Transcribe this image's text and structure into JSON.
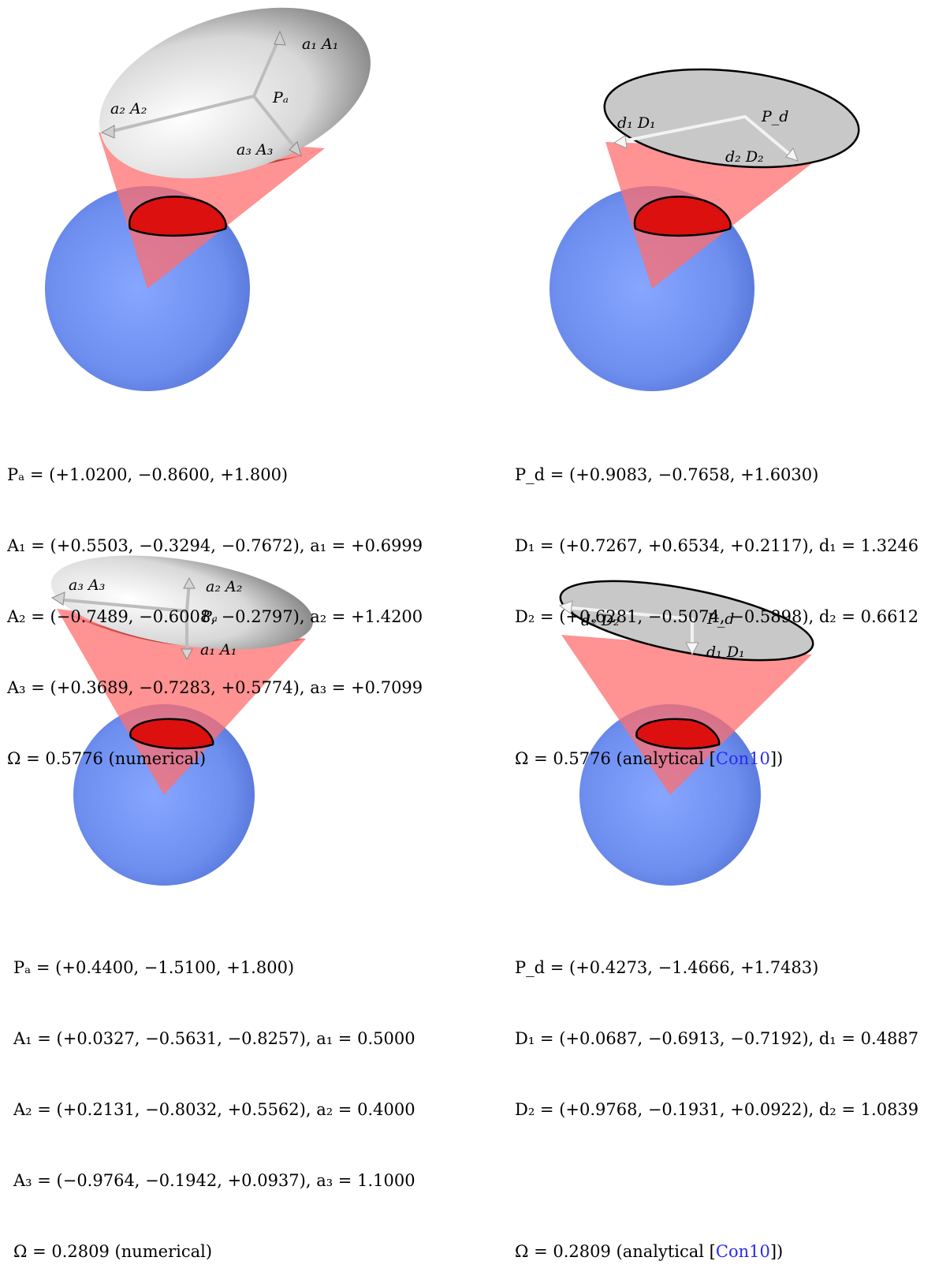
{
  "panels": [
    {
      "labels": {
        "axis1": "a₁ A₁",
        "axis2": "a₂ A₂",
        "axis3": "a₃ A₃",
        "center": "Pₐ"
      },
      "equations": [
        "Pₐ = (+1.0200, −0.8600, +1.800)",
        "A₁ = (+0.5503, −0.3294, −0.7672), a₁ = +0.6999",
        "A₂ = (−0.7489, −0.6008, −0.2797), a₂ = +1.4200",
        "A₃ = (+0.3689, −0.7283, +0.5774), a₃ = +0.7099"
      ],
      "omega": "Ω = 0.5776 (numerical)"
    },
    {
      "labels": {
        "axis1": "d₁ D₁",
        "axis2": "d₂ D₂",
        "center": "P_d"
      },
      "equations": [
        "P_d = (+0.9083, −0.7658, +1.6030)",
        "D₁ = (+0.7267, +0.6534, +0.2117), d₁ = 1.3246",
        "D₂ = (+0.6281, −0.5074, −0.5898), d₂ = 0.6612",
        ""
      ],
      "omega_prefix": "Ω = 0.5776 (analytical [",
      "omega_ref": "Con10",
      "omega_suffix": "])"
    },
    {
      "labels": {
        "axis1": "a₁ A₁",
        "axis2": "a₂ A₂",
        "axis3": "a₃ A₃",
        "center": "Pₐ"
      },
      "equations": [
        "Pₐ = (+0.4400, −1.5100, +1.800)",
        "A₁ = (+0.0327, −0.5631, −0.8257), a₁ = 0.5000",
        "A₂ = (+0.2131, −0.8032, +0.5562), a₂ = 0.4000",
        "A₃ = (−0.9764, −0.1942, +0.0937), a₃ = 1.1000"
      ],
      "omega": "Ω = 0.2809 (numerical)"
    },
    {
      "labels": {
        "axis1": "d₁ D₁",
        "axis2": "d₂ D₂",
        "center": "P_d"
      },
      "equations": [
        "P_d = (+0.4273, −1.4666, +1.7483)",
        "D₁ = (+0.0687, −0.6913, −0.7192), d₁ = 0.4887",
        "D₂ = (+0.9768, −0.1931, +0.0922), d₂ = 1.0839",
        ""
      ],
      "omega_prefix": "Ω = 0.2809 (analytical [",
      "omega_ref": "Con10",
      "omega_suffix": "])"
    }
  ],
  "colors": {
    "sphere": "#6f8ff0",
    "cone": "#ff6e6e",
    "projection": "#dd1010",
    "disk": "#c8c8c8",
    "ellipsoid": "#e6e6e6",
    "reference_link": "#2a2aee"
  }
}
